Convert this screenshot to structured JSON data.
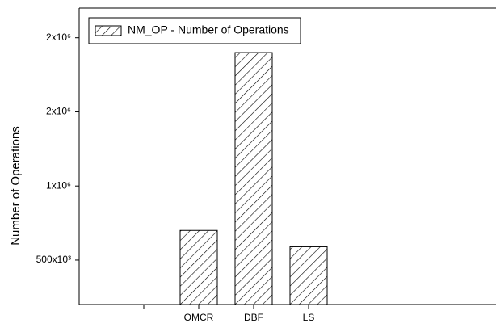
{
  "chart_data": {
    "type": "bar",
    "y_label": "Number of Operations",
    "categories": [
      null,
      "OMCR",
      "DBF",
      "LS"
    ],
    "series": [
      {
        "name": "NM_OP - Number of Operations",
        "color": "#000000",
        "values": [
          null,
          700000,
          1900000,
          590000
        ]
      }
    ],
    "ylim": [
      200000,
      2200000
    ],
    "yticks": [
      {
        "value": 500000,
        "label": "500x10³"
      },
      {
        "value": 1000000,
        "label": "1x10⁶"
      },
      {
        "value": 1500000,
        "label": "2x10⁶"
      },
      {
        "value": 2000000,
        "label": "2x10⁶"
      }
    ],
    "legend": "upper left",
    "hatch": "//"
  }
}
